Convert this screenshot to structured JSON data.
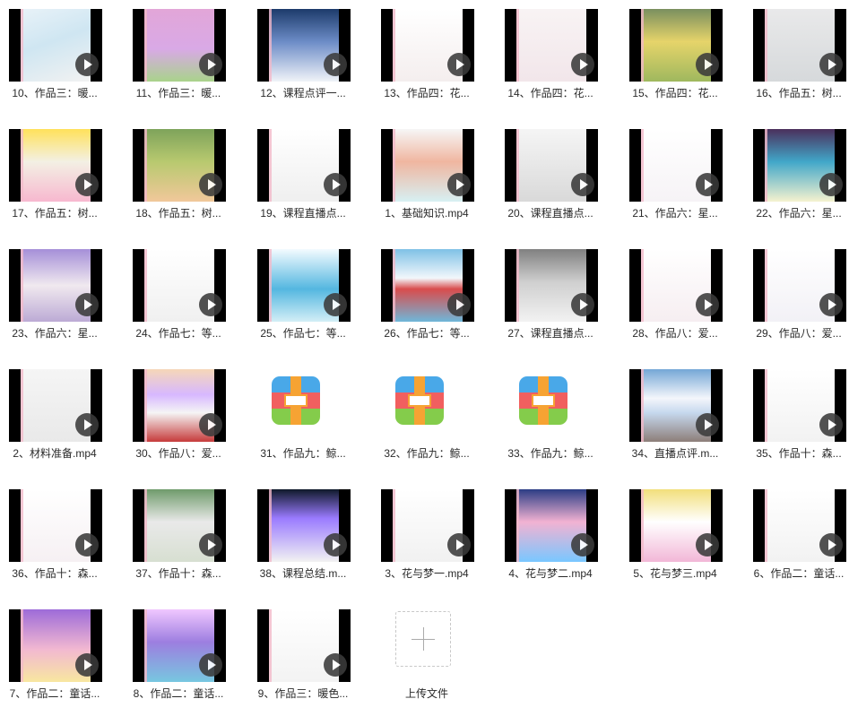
{
  "files": [
    {
      "label": "10、作品三：暖...",
      "type": "video",
      "bg": "linear-gradient(160deg,#e8f2f8 0%,#cfe6f2 45%,#f2f2f2 100%)"
    },
    {
      "label": "11、作品三：暖...",
      "type": "video",
      "bg": "linear-gradient(180deg,#e2a6d8 0%,#d9a9e6 55%,#a9d38b 100%)"
    },
    {
      "label": "12、课程点评一...",
      "type": "video",
      "bg": "linear-gradient(180deg,#1d3b6b 0%,#6c8cc7 45%,#f0f3f8 100%)"
    },
    {
      "label": "13、作品四：花...",
      "type": "video",
      "bg": "linear-gradient(180deg,#ffffff 0%,#f4eeee 100%)"
    },
    {
      "label": "14、作品四：花...",
      "type": "video",
      "bg": "linear-gradient(180deg,#f8f3f4 0%,#f2e6ea 100%)"
    },
    {
      "label": "15、作品四：花...",
      "type": "video",
      "bg": "linear-gradient(180deg,#7a8f5f 0%,#e6d46a 45%,#9fb85e 100%)"
    },
    {
      "label": "16、作品五：树...",
      "type": "video",
      "bg": "linear-gradient(180deg,#e9e9ea 0%,#d6d9db 100%)"
    },
    {
      "label": "17、作品五：树...",
      "type": "video",
      "bg": "linear-gradient(180deg,#ffe15a 0%,#f3f0e4 45%,#f7b8cf 100%)"
    },
    {
      "label": "18、作品五：树...",
      "type": "video",
      "bg": "linear-gradient(180deg,#7ea35b 0%,#b8c96f 45%,#f1c89a 100%)"
    },
    {
      "label": "19、课程直播点...",
      "type": "video",
      "bg": "linear-gradient(180deg,#ffffff 0%,#efefef 100%)"
    },
    {
      "label": "1、基础知识.mp4",
      "type": "video",
      "bg": "linear-gradient(180deg,#f6f6f6 0%,#f0b6a0 45%,#d7f0f3 100%)"
    },
    {
      "label": "20、课程直播点...",
      "type": "video",
      "bg": "linear-gradient(180deg,#f5f5f5 0%,#d9d9d9 100%)"
    },
    {
      "label": "21、作品六：星...",
      "type": "video",
      "bg": "linear-gradient(180deg,#ffffff 0%,#f6f3f6 100%)"
    },
    {
      "label": "22、作品六：星...",
      "type": "video",
      "bg": "linear-gradient(180deg,#4b2f5c 0%,#41a7c9 45%,#f5f2cf 100%)"
    },
    {
      "label": "23、作品六：星...",
      "type": "video",
      "bg": "linear-gradient(180deg,#a58fd8 0%,#f0e9ef 50%,#bcaad5 100%)"
    },
    {
      "label": "24、作品七：等...",
      "type": "video",
      "bg": "linear-gradient(180deg,#ffffff 0%,#f0f0f0 100%)"
    },
    {
      "label": "25、作品七：等...",
      "type": "video",
      "bg": "linear-gradient(180deg,#f3fbff 0%,#54b7e0 55%,#d3eef6 100%)"
    },
    {
      "label": "26、作品七：等...",
      "type": "video",
      "bg": "linear-gradient(180deg,#7fc1e6 0%,#f2f7fb 40%,#d94c4c 55%,#6fb7d9 100%)"
    },
    {
      "label": "27、课程直播点...",
      "type": "video",
      "bg": "linear-gradient(180deg,#808080 0%,#cfcfcf 45%,#f2f2f2 100%)"
    },
    {
      "label": "28、作品八：爱...",
      "type": "video",
      "bg": "linear-gradient(180deg,#ffffff 0%,#f6eef1 100%)"
    },
    {
      "label": "29、作品八：爱...",
      "type": "video",
      "bg": "linear-gradient(180deg,#ffffff 0%,#f2f1f6 100%)"
    },
    {
      "label": "2、材料准备.mp4",
      "type": "video",
      "bg": "linear-gradient(180deg,#f5f5f5 0%,#e9e9e9 100%)"
    },
    {
      "label": "30、作品八：爱...",
      "type": "video",
      "bg": "linear-gradient(180deg,#f6d7b8 0%,#d7b8ff 35%,#f5f5f5 60%,#c63b3b 100%)"
    },
    {
      "label": "31、作品九：鲸...",
      "type": "zip"
    },
    {
      "label": "32、作品九：鲸...",
      "type": "zip"
    },
    {
      "label": "33、作品九：鲸...",
      "type": "zip"
    },
    {
      "label": "34、直播点评.m...",
      "type": "video",
      "bg": "linear-gradient(180deg,#74a7d6 0%,#f4f6fb 40%,#c6d8ee 60%,#8d7e79 100%)"
    },
    {
      "label": "35、作品十：森...",
      "type": "video",
      "bg": "linear-gradient(180deg,#ffffff 0%,#f2f2f2 100%)"
    },
    {
      "label": "36、作品十：森...",
      "type": "video",
      "bg": "linear-gradient(180deg,#ffffff 0%,#f6f0f3 100%)"
    },
    {
      "label": "37、作品十：森...",
      "type": "video",
      "bg": "linear-gradient(180deg,#6f9b6b 0%,#e9e9e9 45%,#d7dfd1 100%)"
    },
    {
      "label": "38、课程总结.m...",
      "type": "video",
      "bg": "linear-gradient(180deg,#0f1a2a 0%,#9a7bff 40%,#f2f2f2 100%)"
    },
    {
      "label": "3、花与梦一.mp4",
      "type": "video",
      "bg": "linear-gradient(180deg,#ffffff 0%,#f1f1f1 100%)"
    },
    {
      "label": "4、花与梦二.mp4",
      "type": "video",
      "bg": "linear-gradient(180deg,#2b3d85 0%,#f2b2d2 45%,#79c7ff 100%)"
    },
    {
      "label": "5、花与梦三.mp4",
      "type": "video",
      "bg": "linear-gradient(180deg,#f2df7b 0%,#ffffff 45%,#f2b7d7 100%)"
    },
    {
      "label": "6、作品二：童话...",
      "type": "video",
      "bg": "linear-gradient(180deg,#ffffff 0%,#f2f2f2 100%)"
    },
    {
      "label": "7、作品二：童话...",
      "type": "video",
      "bg": "linear-gradient(180deg,#9d6bd9 0%,#f2b8d1 55%,#f8e7a0 100%)"
    },
    {
      "label": "8、作品二：童话...",
      "type": "video",
      "bg": "linear-gradient(180deg,#f0c7ff 0%,#9d7ee0 45%,#77c7e0 100%)"
    },
    {
      "label": "9、作品三：暖色...",
      "type": "video",
      "bg": "linear-gradient(180deg,#ffffff 0%,#f3f3f3 100%)"
    },
    {
      "label": "上传文件",
      "type": "upload"
    }
  ]
}
